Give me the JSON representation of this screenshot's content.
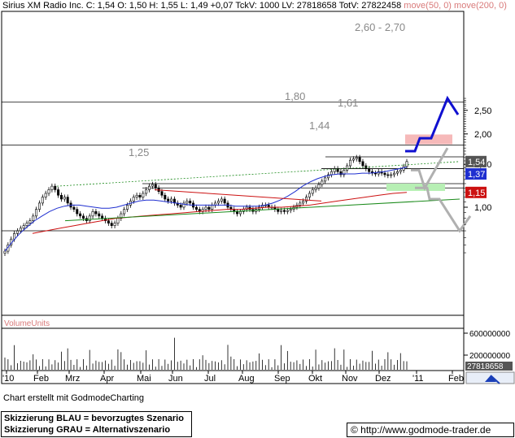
{
  "header": {
    "symbol": "Sirius XM Radio Inc.",
    "close": "C: 1,54",
    "open": "O: 1,50",
    "high": "H: 1,55",
    "low": "L: 1,49",
    "change": "+0,07",
    "tickvol": "TckV: 1000",
    "lastvol": "LV: 27818658",
    "totvol": "TotV: 27822458",
    "ma1": "move(50, 0)",
    "ma2": "move(200, 0)"
  },
  "footer": {
    "made_with": "Chart erstellt mit GodmodeCharting",
    "legend_blue": "Skizzierung BLAU = bevorzugtes Szenario",
    "legend_gray": "Skizzierung GRAU = Alternativszenario",
    "url": "© http://www.godmode-trader.de"
  },
  "colors": {
    "price": "#000000",
    "ma50": "#1f2fd0",
    "ma200": "#cc1111",
    "trend": "#1a8a1a",
    "blue_scenario": "#1010d0",
    "gray_scenario": "#b0b0b0",
    "zone_red": "#f6b9b9",
    "zone_green": "#b7efb4"
  },
  "chart_data": {
    "type": "candlestick",
    "title": "Sirius XM Radio Inc.",
    "y_scale": "log",
    "ylim": [
      0.6,
      2.8
    ],
    "y_ticks": [
      "2,50",
      "2,00",
      "1,50",
      "1,00"
    ],
    "x_labels": [
      "'10",
      "Feb",
      "Mrz",
      "Apr",
      "Mai",
      "Jun",
      "Jul",
      "Aug",
      "Sep",
      "Okt",
      "Nov",
      "Dez",
      "'11",
      "Feb"
    ],
    "price_tags": [
      {
        "label": "1,54",
        "value": 1.54
      },
      {
        "label": "1,37",
        "value": 1.37
      },
      {
        "label": "1,15",
        "value": 1.15
      }
    ],
    "annotations": [
      {
        "label": "2,60 - 2,70",
        "value": 2.7
      },
      {
        "label": "1,80",
        "value": 1.8
      },
      {
        "label": "1,61",
        "value": 1.61
      },
      {
        "label": "1,44",
        "value": 1.44
      },
      {
        "label": "1,25",
        "value": 1.25
      }
    ],
    "horizontal_lines": [
      2.7,
      1.8,
      1.61,
      1.44,
      1.25,
      1.2,
      0.8
    ],
    "closes": [
      0.66,
      0.7,
      0.74,
      0.78,
      0.8,
      0.82,
      0.84,
      0.86,
      0.88,
      0.92,
      0.98,
      1.04,
      1.1,
      1.14,
      1.18,
      1.22,
      1.18,
      1.12,
      1.08,
      1.1,
      1.04,
      1.0,
      0.98,
      0.94,
      0.92,
      0.9,
      0.88,
      0.92,
      0.96,
      0.94,
      0.92,
      0.9,
      0.88,
      0.86,
      0.84,
      0.86,
      0.9,
      0.94,
      0.98,
      1.02,
      1.06,
      1.1,
      1.12,
      1.1,
      1.14,
      1.18,
      1.22,
      1.24,
      1.2,
      1.16,
      1.12,
      1.08,
      1.06,
      1.08,
      1.04,
      1.02,
      1.0,
      1.04,
      1.06,
      1.04,
      1.0,
      0.98,
      0.96,
      0.98,
      1.0,
      0.98,
      1.02,
      1.04,
      1.06,
      1.08,
      1.04,
      1.0,
      0.98,
      0.96,
      0.94,
      0.96,
      0.98,
      1.0,
      0.98,
      0.96,
      0.98,
      1.0,
      1.02,
      1.02,
      1.0,
      1.0,
      0.98,
      0.96,
      0.97,
      0.96,
      0.97,
      0.98,
      1.0,
      1.02,
      1.04,
      1.06,
      1.1,
      1.14,
      1.18,
      1.2,
      1.24,
      1.28,
      1.32,
      1.36,
      1.4,
      1.44,
      1.4,
      1.36,
      1.42,
      1.48,
      1.56,
      1.58,
      1.6,
      1.54,
      1.48,
      1.44,
      1.4,
      1.38,
      1.37,
      1.4,
      1.38,
      1.36,
      1.35,
      1.36,
      1.38,
      1.4,
      1.42,
      1.47,
      1.54
    ],
    "ma50": [
      0.66,
      0.72,
      0.78,
      0.83,
      0.88,
      0.92,
      0.96,
      0.99,
      1.01,
      1.02,
      1.02,
      1.01,
      1.0,
      0.99,
      0.99,
      1.0,
      1.02,
      1.04,
      1.06,
      1.07,
      1.07,
      1.06,
      1.05,
      1.04,
      1.03,
      1.02,
      1.02,
      1.02,
      1.02,
      1.02,
      1.02,
      1.01,
      1.01,
      1.01,
      1.01,
      1.02,
      1.04,
      1.07,
      1.11,
      1.16,
      1.22,
      1.27,
      1.31,
      1.34,
      1.36,
      1.37,
      1.37,
      1.37,
      1.38,
      1.38,
      1.39,
      1.4,
      1.42,
      1.44,
      1.46
    ],
    "ma200": [
      0.78,
      0.8,
      0.82,
      0.84,
      0.86,
      0.88,
      0.9,
      0.91,
      0.92,
      0.93,
      0.94,
      0.95,
      0.96,
      0.97,
      0.98,
      0.98,
      0.99,
      1.0,
      1.0,
      1.01,
      1.02,
      1.04,
      1.06,
      1.08,
      1.1,
      1.12,
      1.14,
      1.15
    ],
    "volume": {
      "label": "VolumeUnits",
      "y_ticks": [
        "600000000",
        "200000000"
      ],
      "last": "27818658"
    }
  }
}
